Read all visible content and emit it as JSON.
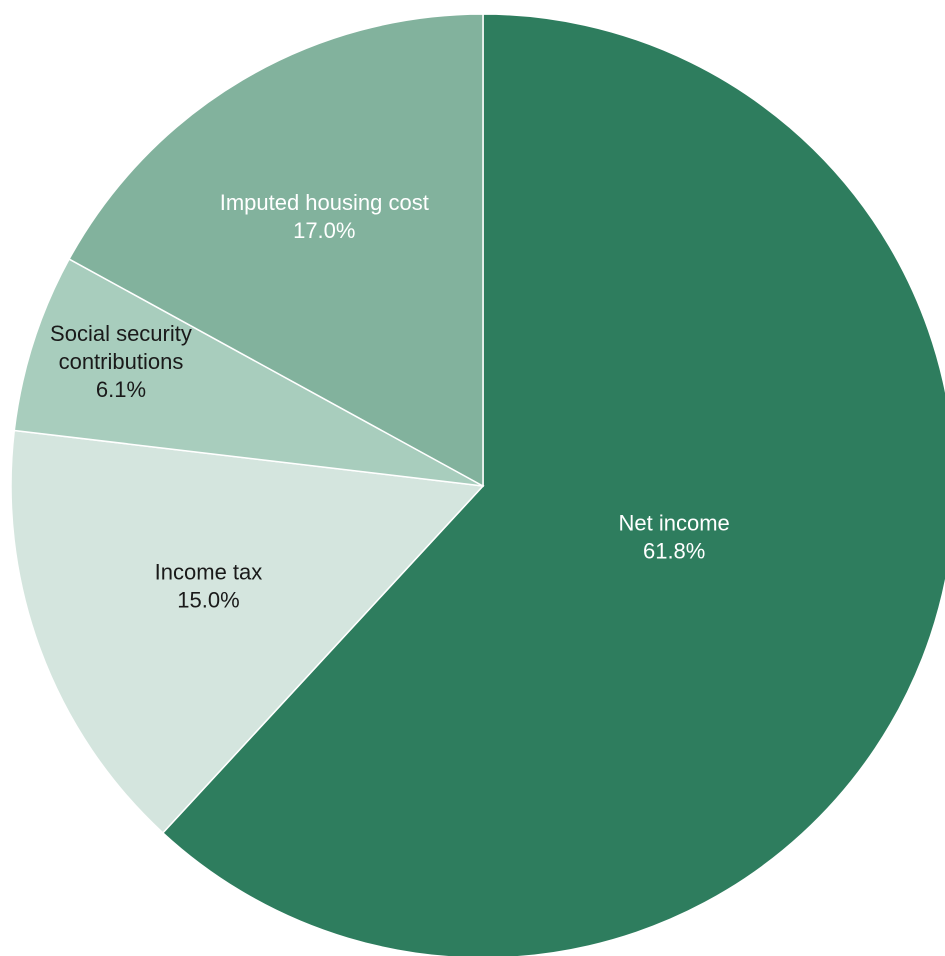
{
  "chart_data": {
    "type": "pie",
    "title": "",
    "slices": [
      {
        "key": "net_income",
        "label_lines": [
          "Net income"
        ],
        "value": 61.8,
        "value_label": "61.8%",
        "color": "#2e7d5e",
        "text_color": "#ffffff"
      },
      {
        "key": "income_tax",
        "label_lines": [
          "Income tax"
        ],
        "value": 15.0,
        "value_label": "15.0%",
        "color": "#d4e5de",
        "text_color": "#1a1a1a"
      },
      {
        "key": "social_security",
        "label_lines": [
          "Social security",
          "contributions"
        ],
        "value": 6.1,
        "value_label": "6.1%",
        "color": "#a8cdbd",
        "text_color": "#1a1a1a"
      },
      {
        "key": "imputed_housing",
        "label_lines": [
          "Imputed housing cost"
        ],
        "value": 17.0,
        "value_label": "17.0%",
        "color": "#82b29d",
        "text_color": "#ffffff"
      }
    ],
    "start_angle_deg": 0,
    "direction": "clockwise",
    "slice_border_color": "#ffffff",
    "legend": "none"
  }
}
